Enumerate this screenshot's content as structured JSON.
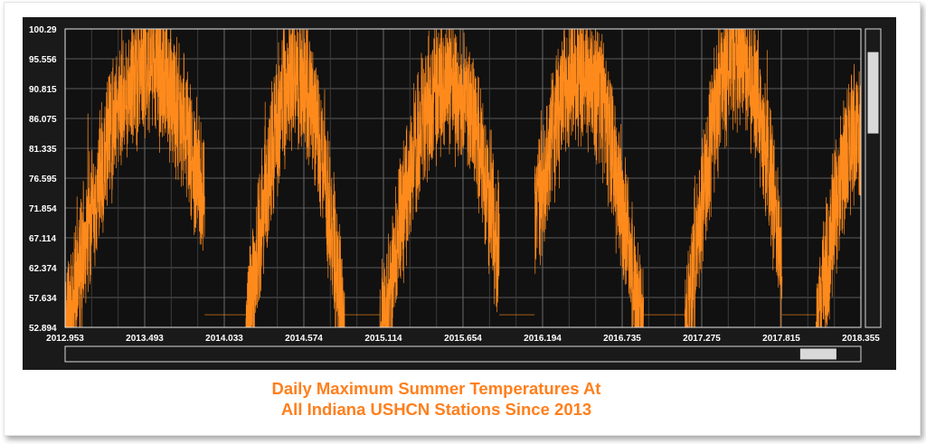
{
  "chart_data": {
    "type": "line",
    "title": "",
    "xlabel": "",
    "ylabel": "",
    "x_ticks": [
      "2012.953",
      "2013.493",
      "2014.033",
      "2014.574",
      "2015.114",
      "2015.654",
      "2016.194",
      "2016.735",
      "2017.275",
      "2017.815",
      "2018.355"
    ],
    "y_ticks": [
      "100.29",
      "95.556",
      "90.815",
      "86.075",
      "81.335",
      "76.595",
      "71.854",
      "67.114",
      "62.374",
      "57.634",
      "52.894"
    ],
    "xlim": [
      2012.953,
      2018.355
    ],
    "ylim": [
      52.894,
      100.29
    ],
    "grid": true,
    "series": [
      {
        "color": "#ff8a1c",
        "seasons": [
          {
            "start": 2012.953,
            "end": 2013.9,
            "peak_x": 2013.52,
            "peak_y": 98.0
          },
          {
            "start": 2014.18,
            "end": 2014.85,
            "peak_x": 2014.52,
            "peak_y": 96.0
          },
          {
            "start": 2015.09,
            "end": 2015.9,
            "peak_x": 2015.55,
            "peak_y": 95.5
          },
          {
            "start": 2016.14,
            "end": 2016.88,
            "peak_x": 2016.45,
            "peak_y": 97.5
          },
          {
            "start": 2017.16,
            "end": 2017.82,
            "peak_x": 2017.52,
            "peak_y": 100.3
          },
          {
            "start": 2018.05,
            "end": 2018.355,
            "peak_x": 2018.35,
            "peak_y": 88.0
          }
        ]
      }
    ]
  },
  "scrollbar": {
    "vertical_thumb_position": 0.2,
    "horizontal_thumb_position": 0.97
  },
  "caption": {
    "line1": "Daily Maximum Summer Temperatures At",
    "line2": "All Indiana USHCN Stations Since 2013"
  }
}
